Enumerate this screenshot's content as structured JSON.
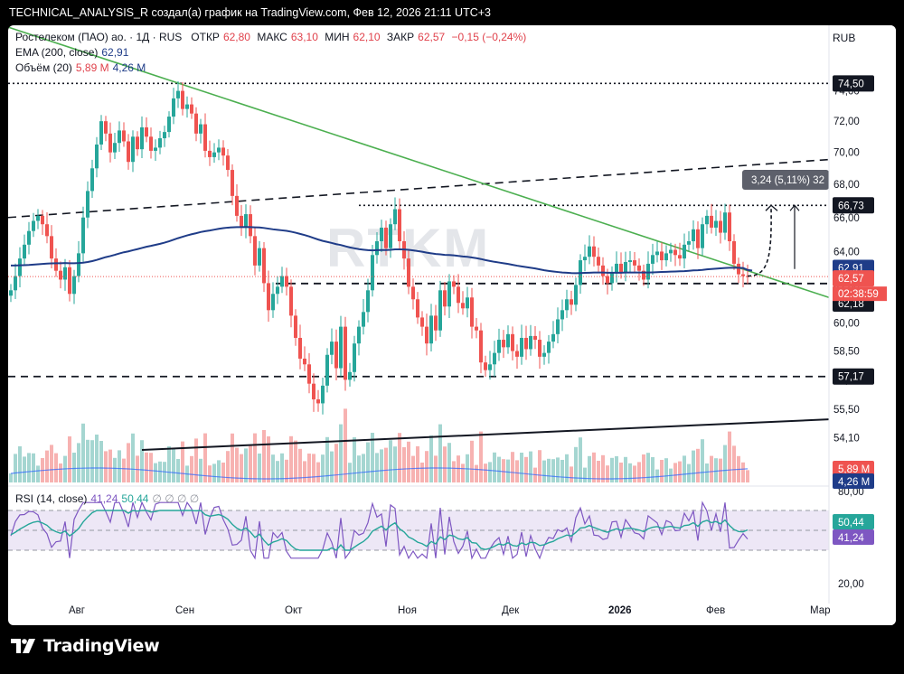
{
  "header": {
    "title": "TECHNICAL_ANALYSIS_R создал(а) график на TradingView.com, Фев 12, 2026 21:11 UTC+3"
  },
  "legend": {
    "symbol": "Ростелеком (ПАО) ао. · 1Д · RUS",
    "open_label": "ОТКР",
    "open": "62,80",
    "high_label": "МАКС",
    "high": "63,10",
    "low_label": "МИН",
    "low": "62,10",
    "close_label": "ЗАКР",
    "close": "62,57",
    "change": "−0,15 (−0,24%)",
    "ema_label": "EMA (200, close)",
    "ema_value": "62,91",
    "vol_label": "Объём (20)",
    "vol_value": "5,89 M",
    "vol_ma": "4,26 M",
    "rsi_label": "RSI (14, close)",
    "rsi_value": "41,24",
    "rsi_ma": "50,44",
    "rsi_dots": "∅ ∅ ∅ ∅",
    "currency": "RUB"
  },
  "watermark": "RTKM",
  "measure_label": "3,24 (5,11%) 32",
  "footer": {
    "brand": "TradingView"
  },
  "colors": {
    "up": "#26a69a",
    "down": "#ef5350",
    "ema": "#1f3c88",
    "trend_green": "#4caf50",
    "rsi": "#7e57c2",
    "rsi_ma": "#26a69a"
  },
  "chart_data": {
    "type": "candlestick",
    "instrument": "Ростелеком (ПАО) ао.",
    "timeframe": "1Д",
    "x_ticks": [
      "Авг",
      "Сен",
      "Окт",
      "Ноя",
      "Дек",
      "2026",
      "Фев",
      "Мар"
    ],
    "y_ticks": [
      "74,00",
      "72,00",
      "70,00",
      "68,00",
      "66,00",
      "64,00",
      "62,00",
      "60,00",
      "58,50",
      "57,00",
      "55,50",
      "54,10"
    ],
    "y_scale": "log",
    "price_range": [
      53.5,
      75.5
    ],
    "price_labels": [
      {
        "value": 74.5,
        "text": "74,50",
        "style": "dark"
      },
      {
        "value": 66.73,
        "text": "66,73",
        "style": "dark"
      },
      {
        "value": 62.91,
        "text": "62,91",
        "style": "ema"
      },
      {
        "value": 62.57,
        "text": "62,57",
        "style": "down"
      },
      {
        "value": 62.18,
        "text": "62,18",
        "style": "dark"
      },
      {
        "value": 57.17,
        "text": "57,17",
        "style": "dark"
      }
    ],
    "countdown": "02:38:59",
    "vol_labels": [
      "5,89 M",
      "4,26 M"
    ],
    "horizontal_levels": [
      74.5,
      66.73,
      62.18,
      57.17
    ],
    "last_close": 62.57,
    "ema200_last": 62.91,
    "closes": [
      61.8,
      62.6,
      63.6,
      64.4,
      65.2,
      65.8,
      66.1,
      65.6,
      64.9,
      63.6,
      62.9,
      62.4,
      63.1,
      61.6,
      62.6,
      63.9,
      66.0,
      67.6,
      69.0,
      70.5,
      72.0,
      71.2,
      70.0,
      70.6,
      71.4,
      70.7,
      69.4,
      71.0,
      70.2,
      71.6,
      71.0,
      70.1,
      70.3,
      70.9,
      71.3,
      72.3,
      73.5,
      74.0,
      72.8,
      73.1,
      72.5,
      71.2,
      71.8,
      70.1,
      69.7,
      70.0,
      70.3,
      69.8,
      68.9,
      67.3,
      66.1,
      65.4,
      66.2,
      64.9,
      63.2,
      64.2,
      62.2,
      60.7,
      61.6,
      62.0,
      62.6,
      62.0,
      60.4,
      59.2,
      58.1,
      57.8,
      56.8,
      56.0,
      55.8,
      56.7,
      58.3,
      59.0,
      57.6,
      59.8,
      57.0,
      57.4,
      58.9,
      59.8,
      60.6,
      61.8,
      63.8,
      64.6,
      65.4,
      64.2,
      65.6,
      66.5,
      64.6,
      63.6,
      62.0,
      61.3,
      60.3,
      59.8,
      58.9,
      60.4,
      59.6,
      61.8,
      60.9,
      62.3,
      62.0,
      61.1,
      60.8,
      61.4,
      59.8,
      59.6,
      57.9,
      57.5,
      57.8,
      58.4,
      59.1,
      58.7,
      59.4,
      58.5,
      58.2,
      59.2,
      58.6,
      59.3,
      59.1,
      58.2,
      58.4,
      59.0,
      59.4,
      60.2,
      60.7,
      61.3,
      61.0,
      62.1,
      63.5,
      63.7,
      64.3,
      63.7,
      63.2,
      62.6,
      62.2,
      62.8,
      63.3,
      62.8,
      63.4,
      63.5,
      63.2,
      62.9,
      62.4,
      63.3,
      63.8,
      64.0,
      63.5,
      63.9,
      64.1,
      63.8,
      63.6,
      64.4,
      64.6,
      65.3,
      64.2,
      65.6,
      66.1,
      65.4,
      65.8,
      65.1,
      66.3,
      64.6,
      63.3,
      62.7,
      62.6,
      62.57
    ],
    "ema200": [
      63.2,
      63.2,
      63.21,
      63.22,
      63.23,
      63.25,
      63.27,
      63.29,
      63.31,
      63.32,
      63.33,
      63.33,
      63.34,
      63.33,
      63.33,
      63.34,
      63.36,
      63.4,
      63.45,
      63.52,
      63.6,
      63.68,
      63.74,
      63.81,
      63.89,
      63.96,
      64.01,
      64.08,
      64.14,
      64.21,
      64.28,
      64.33,
      64.39,
      64.45,
      64.52,
      64.6,
      64.69,
      64.78,
      64.86,
      64.94,
      65.01,
      65.07,
      65.14,
      65.19,
      65.23,
      65.28,
      65.33,
      65.37,
      65.4,
      65.42,
      65.43,
      65.43,
      65.44,
      65.43,
      65.42,
      65.41,
      65.38,
      65.34,
      65.3,
      65.27,
      65.24,
      65.21,
      65.16,
      65.1,
      65.03,
      64.96,
      64.88,
      64.79,
      64.7,
      64.62,
      64.56,
      64.5,
      64.43,
      64.38,
      64.31,
      64.24,
      64.19,
      64.14,
      64.11,
      64.08,
      64.07,
      64.08,
      64.09,
      64.09,
      64.1,
      64.13,
      64.13,
      64.12,
      64.1,
      64.07,
      64.03,
      63.99,
      63.94,
      63.9,
      63.86,
      63.84,
      63.81,
      63.8,
      63.78,
      63.75,
      63.72,
      63.7,
      63.66,
      63.62,
      63.57,
      63.51,
      63.46,
      63.41,
      63.37,
      63.33,
      63.29,
      63.24,
      63.19,
      63.15,
      63.11,
      63.07,
      63.03,
      62.98,
      62.93,
      62.89,
      62.86,
      62.83,
      62.8,
      62.79,
      62.77,
      62.76,
      62.77,
      62.78,
      62.79,
      62.8,
      62.8,
      62.8,
      62.79,
      62.79,
      62.79,
      62.79,
      62.8,
      62.8,
      62.8,
      62.8,
      62.8,
      62.8,
      62.81,
      62.82,
      62.83,
      62.84,
      62.85,
      62.86,
      62.87,
      62.88,
      62.9,
      62.92,
      62.93,
      62.95,
      62.98,
      63.0,
      63.02,
      63.04,
      63.06,
      63.07,
      63.07,
      63.07,
      63.06,
      62.95,
      62.91
    ],
    "rsi_last": 41.24,
    "rsi_ma_last": 50.44,
    "rsi_levels": [
      80,
      70,
      50,
      30,
      20
    ],
    "rsi_ticks": [
      "80,00",
      "20,00"
    ]
  }
}
